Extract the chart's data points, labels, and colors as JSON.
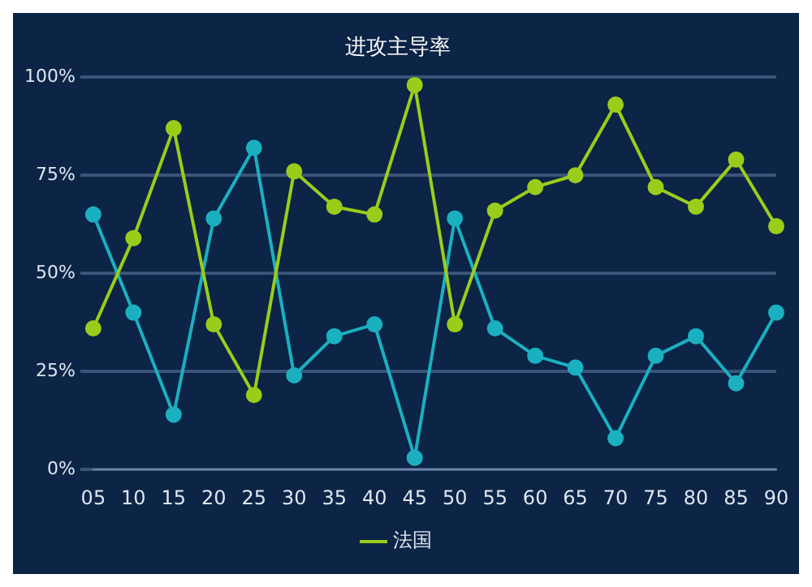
{
  "chart_data": {
    "type": "line",
    "title": "进攻主导率",
    "categories": [
      "05",
      "10",
      "15",
      "20",
      "25",
      "30",
      "35",
      "40",
      "45",
      "50",
      "55",
      "60",
      "65",
      "70",
      "75",
      "80",
      "85",
      "90"
    ],
    "series": [
      {
        "name": "法国",
        "color": "#9acd1a",
        "values": [
          36,
          59,
          87,
          37,
          19,
          76,
          67,
          65,
          98,
          37,
          66,
          72,
          75,
          93,
          72,
          67,
          79,
          62
        ]
      },
      {
        "color": "#1ab0c0",
        "values": [
          65,
          40,
          14,
          64,
          82,
          24,
          34,
          37,
          3,
          64,
          36,
          29,
          26,
          8,
          29,
          34,
          22,
          40
        ]
      }
    ],
    "ylim": [
      0,
      100
    ],
    "yticks": [
      {
        "value": 0,
        "label": "0%"
      },
      {
        "value": 25,
        "label": "25%"
      },
      {
        "value": 50,
        "label": "50%"
      },
      {
        "value": 75,
        "label": "75%"
      },
      {
        "value": 100,
        "label": "100%"
      }
    ],
    "grid": "y",
    "legend": "bottom",
    "marker": "circle",
    "line_style": "solid"
  }
}
